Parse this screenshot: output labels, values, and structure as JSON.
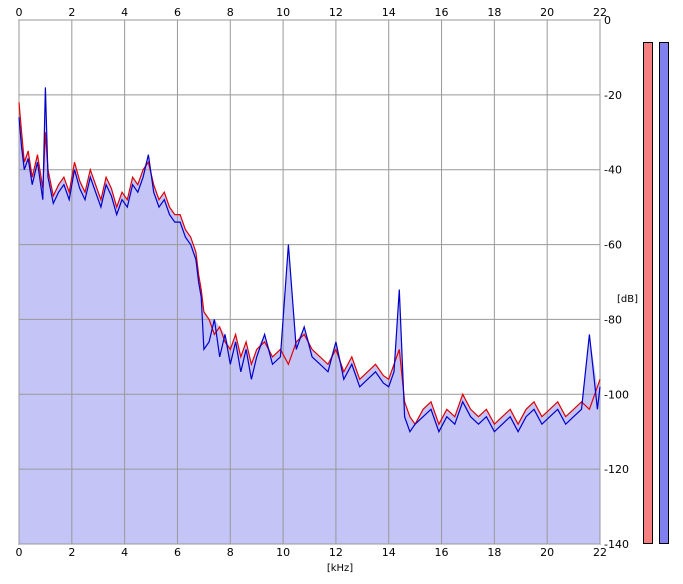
{
  "spectrum": {
    "x_unit_label": "[kHz]",
    "y_unit_label": "[dB]",
    "x_ticks": [
      "0",
      "2",
      "4",
      "6",
      "8",
      "10",
      "12",
      "14",
      "16",
      "18",
      "20",
      "22"
    ],
    "y_ticks": [
      "0",
      "-20",
      "-40",
      "-60",
      "-80",
      "-100",
      "-120",
      "-140"
    ],
    "colors": {
      "background": "#ffffff",
      "fill": "#c4c4f6",
      "grid": "#999999",
      "left_channel": "#e00000",
      "right_channel": "#0000c8"
    }
  },
  "chart_data": {
    "type": "line",
    "title": "",
    "xlabel": "[kHz]",
    "ylabel": "[dB]",
    "xlim": [
      0,
      22
    ],
    "ylim": [
      -140,
      0
    ],
    "grid": true,
    "series": [
      {
        "x": [
          0,
          0.1,
          0.2,
          0.35,
          0.5,
          0.7,
          0.9,
          1.0,
          1.1,
          1.3,
          1.5,
          1.7,
          1.9,
          2.1,
          2.3,
          2.5,
          2.7,
          2.9,
          3.1,
          3.3,
          3.5,
          3.7,
          3.9,
          4.1,
          4.3,
          4.5,
          4.7,
          4.9,
          5.1,
          5.3,
          5.5,
          5.7,
          5.9,
          6.1,
          6.3,
          6.5,
          6.7,
          6.8,
          6.9,
          7.0,
          7.2,
          7.4,
          7.6,
          7.8,
          8.0,
          8.2,
          8.4,
          8.6,
          8.8,
          9.0,
          9.3,
          9.6,
          9.9,
          10.2,
          10.5,
          10.8,
          11.1,
          11.4,
          11.7,
          12.0,
          12.3,
          12.6,
          12.9,
          13.2,
          13.5,
          13.8,
          14.0,
          14.2,
          14.4,
          14.6,
          14.8,
          15.0,
          15.3,
          15.6,
          15.9,
          16.2,
          16.5,
          16.8,
          17.1,
          17.4,
          17.7,
          18.0,
          18.3,
          18.6,
          18.9,
          19.2,
          19.5,
          19.8,
          20.1,
          20.4,
          20.7,
          21.0,
          21.3,
          21.6,
          21.9,
          22.0
        ],
        "values": [
          -22,
          -30,
          -38,
          -35,
          -42,
          -36,
          -45,
          -30,
          -40,
          -47,
          -44,
          -42,
          -46,
          -38,
          -43,
          -46,
          -40,
          -44,
          -48,
          -42,
          -45,
          -50,
          -46,
          -48,
          -42,
          -44,
          -40,
          -38,
          -44,
          -48,
          -46,
          -50,
          -52,
          -52,
          -56,
          -58,
          -62,
          -68,
          -72,
          -78,
          -80,
          -84,
          -82,
          -86,
          -88,
          -84,
          -90,
          -86,
          -92,
          -88,
          -86,
          -90,
          -88,
          -92,
          -86,
          -84,
          -88,
          -90,
          -92,
          -88,
          -94,
          -90,
          -96,
          -94,
          -92,
          -95,
          -96,
          -92,
          -88,
          -102,
          -106,
          -108,
          -104,
          -102,
          -108,
          -104,
          -106,
          -100,
          -104,
          -106,
          -104,
          -108,
          -106,
          -104,
          -108,
          -104,
          -102,
          -106,
          -104,
          -102,
          -106,
          -104,
          -102,
          -104,
          -98,
          -96
        ]
      },
      {
        "x": [
          0,
          0.1,
          0.2,
          0.35,
          0.5,
          0.7,
          0.9,
          1.0,
          1.1,
          1.3,
          1.5,
          1.7,
          1.9,
          2.1,
          2.3,
          2.5,
          2.7,
          2.9,
          3.1,
          3.3,
          3.5,
          3.7,
          3.9,
          4.1,
          4.3,
          4.5,
          4.7,
          4.9,
          5.1,
          5.3,
          5.5,
          5.7,
          5.9,
          6.1,
          6.3,
          6.5,
          6.7,
          6.8,
          6.9,
          7.0,
          7.2,
          7.4,
          7.6,
          7.8,
          8.0,
          8.2,
          8.4,
          8.6,
          8.8,
          9.0,
          9.3,
          9.6,
          9.9,
          10.2,
          10.5,
          10.8,
          11.1,
          11.4,
          11.7,
          12.0,
          12.3,
          12.6,
          12.9,
          13.2,
          13.5,
          13.8,
          14.0,
          14.2,
          14.4,
          14.6,
          14.8,
          15.0,
          15.3,
          15.6,
          15.9,
          16.2,
          16.5,
          16.8,
          17.1,
          17.4,
          17.7,
          18.0,
          18.3,
          18.6,
          18.9,
          19.2,
          19.5,
          19.8,
          20.1,
          20.4,
          20.7,
          21.0,
          21.3,
          21.6,
          21.9,
          22.0
        ],
        "values": [
          -26,
          -34,
          -40,
          -37,
          -44,
          -38,
          -48,
          -18,
          -42,
          -49,
          -46,
          -44,
          -48,
          -40,
          -45,
          -48,
          -42,
          -46,
          -50,
          -44,
          -47,
          -52,
          -48,
          -50,
          -44,
          -46,
          -42,
          -36,
          -46,
          -50,
          -48,
          -52,
          -54,
          -54,
          -58,
          -60,
          -64,
          -70,
          -74,
          -88,
          -86,
          -80,
          -90,
          -84,
          -92,
          -86,
          -94,
          -88,
          -96,
          -90,
          -84,
          -92,
          -90,
          -60,
          -88,
          -82,
          -90,
          -92,
          -94,
          -86,
          -96,
          -92,
          -98,
          -96,
          -94,
          -97,
          -98,
          -94,
          -72,
          -106,
          -110,
          -108,
          -106,
          -104,
          -110,
          -106,
          -108,
          -102,
          -106,
          -108,
          -106,
          -110,
          -108,
          -106,
          -110,
          -106,
          -104,
          -108,
          -106,
          -104,
          -108,
          -106,
          -104,
          -84,
          -104,
          -98
        ]
      }
    ]
  },
  "meters": {
    "left_color": "#f48080",
    "right_color": "#8080f0"
  }
}
